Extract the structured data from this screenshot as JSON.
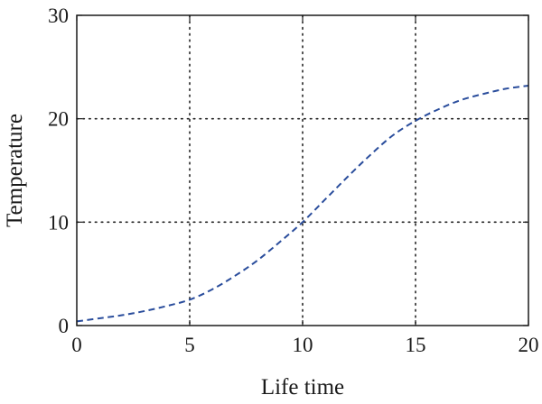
{
  "chart_data": {
    "type": "line",
    "title": "",
    "xlabel": "Life time",
    "ylabel": "Temperature",
    "xlim": [
      0,
      20
    ],
    "ylim": [
      0,
      30
    ],
    "x_ticks": [
      0,
      5,
      10,
      15,
      20
    ],
    "y_ticks": [
      0,
      10,
      20,
      30
    ],
    "grid": true,
    "grid_style": "dotted",
    "series": [
      {
        "color": "#2a4d9c",
        "line_style": "dashed",
        "x": [
          0,
          1,
          2,
          3,
          4,
          5,
          6,
          7,
          8,
          9,
          10,
          11,
          12,
          13,
          14,
          15,
          16,
          17,
          18,
          19,
          20
        ],
        "y": [
          0.4,
          0.7,
          1.0,
          1.4,
          1.9,
          2.5,
          3.5,
          4.8,
          6.3,
          8.1,
          10.0,
          12.2,
          14.4,
          16.5,
          18.4,
          19.8,
          20.9,
          21.8,
          22.4,
          22.9,
          23.2
        ]
      }
    ]
  }
}
